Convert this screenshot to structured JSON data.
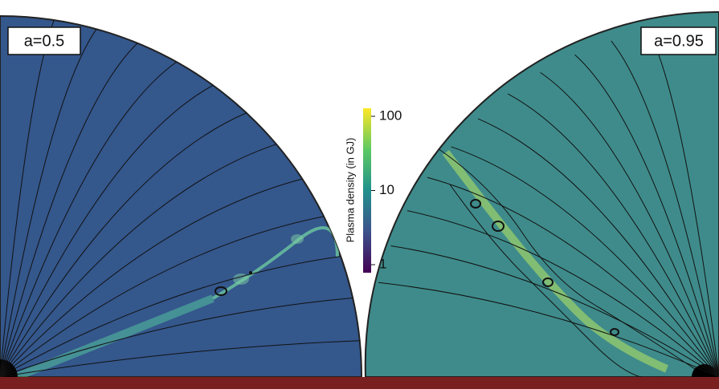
{
  "panels": [
    {
      "label": "a=0.5"
    },
    {
      "label": "a=0.95"
    }
  ],
  "colorbar": {
    "label": "Plasma density (in GJ)",
    "scale": "log",
    "lim": [
      1,
      100
    ],
    "ticks": [
      1,
      10,
      100
    ]
  }
}
